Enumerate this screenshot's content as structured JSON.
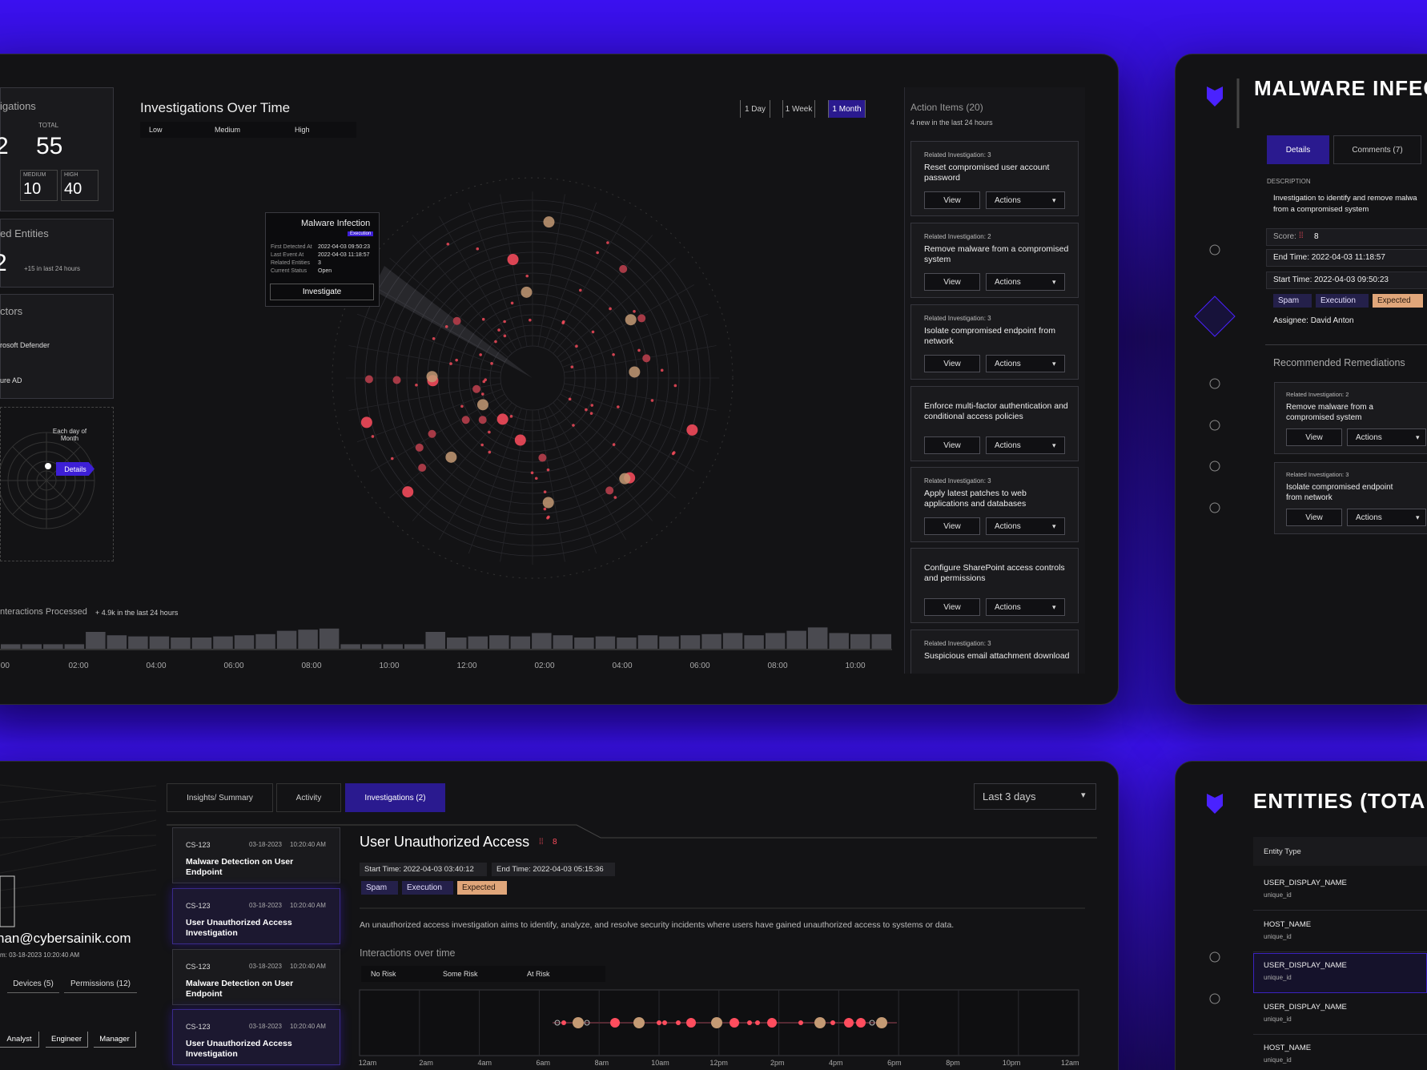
{
  "sidebar": {
    "investigations_title": "igations",
    "total_label": "TOTAL",
    "total": 55,
    "partial_count": 2,
    "medium_label": "MEDIUM",
    "medium": 10,
    "high_label": "HIGH",
    "high": 40,
    "entities_title": "ed Entities",
    "entities_count": 2,
    "entities_note": "+15 in last 24 hours",
    "connectors_title": "ctors",
    "connectors": [
      "rosoft Defender",
      "ure AD"
    ],
    "calendar_label": "Each day of Month",
    "details_button": "Details"
  },
  "investigations_chart": {
    "title": "Investigations Over Time",
    "legend": [
      "Low",
      "Medium",
      "High"
    ],
    "ranges": [
      "1 Day",
      "1 Week",
      "1 Month"
    ],
    "selected_range": 2,
    "tooltip": {
      "title": "Malware Infection",
      "tag": "Execution",
      "fields": [
        {
          "label": "First Detected At",
          "value": "2022-04-03 09:50:23"
        },
        {
          "label": "Last Event At",
          "value": "2022-04-03 11:18:57"
        },
        {
          "label": "Related Entities",
          "value": 3
        },
        {
          "label": "Current Status",
          "value": "Open"
        }
      ],
      "button": "Investigate"
    }
  },
  "interactions": {
    "title": "nteractions Processed",
    "note": "+ 4.9k in the last 24 hours",
    "time_labels": [
      ":00",
      "02:00",
      "04:00",
      "06:00",
      "08:00",
      "10:00",
      "12:00",
      "02:00",
      "04:00",
      "06:00",
      "08:00",
      "10:00"
    ],
    "bars": [
      4,
      4,
      4,
      4,
      15,
      12,
      11,
      11,
      10,
      10,
      11,
      12,
      13,
      16,
      17,
      18,
      4,
      4,
      4,
      4,
      15,
      10,
      11,
      12,
      11,
      14,
      12,
      10,
      11,
      10,
      12,
      11,
      12,
      13,
      14,
      12,
      14,
      16,
      19,
      14,
      13,
      13
    ]
  },
  "action_items": {
    "title": "Action Items (20)",
    "subtitle": "4 new in the last 24 hours",
    "items": [
      {
        "related": "Related Investigation: 3",
        "text": "Reset compromised user account password",
        "view": "View",
        "actions": "Actions"
      },
      {
        "related": "Related Investigation: 2",
        "text": "Remove malware from a compromised system",
        "view": "View",
        "actions": "Actions"
      },
      {
        "related": "Related Investigation: 3",
        "text": "Isolate compromised endpoint from network",
        "view": "View",
        "actions": "Actions"
      },
      {
        "text": "Enforce multi-factor authentication and conditional access policies",
        "view": "View",
        "actions": "Actions"
      },
      {
        "related": "Related Investigation: 3",
        "text": "Apply latest patches to web applications and databases",
        "view": "View",
        "actions": "Actions"
      },
      {
        "text": "Configure SharePoint access controls and permissions",
        "view": "View",
        "actions": "Actions"
      },
      {
        "related": "Related Investigation: 3",
        "text": "Suspicious email attachment download"
      }
    ]
  },
  "investigation_detail": {
    "title": "MALWARE INFECT",
    "tabs": [
      "Details",
      "Comments (7)"
    ],
    "description_label": "DESCRIPTION",
    "description_lines": [
      "Investigation to identify and remove malwa",
      "from a compromised system"
    ],
    "score_label": "Score:",
    "score": 8,
    "end_time": "End Time: 2022-04-03 11:18:57",
    "start_time": "Start Time: 2022-04-03 09:50:23",
    "tags": [
      "Spam",
      "Execution",
      "Expected"
    ],
    "assignee": "Assignee: David Anton",
    "remediations_title": "Recommended Remediations",
    "remediations": [
      {
        "related": "Related Investigation: 2",
        "text": "Remove malware from a compromised system",
        "view": "View",
        "actions": "Actions"
      },
      {
        "related": "Related Investigation: 3",
        "text": "Isolate compromised endpoint from network",
        "view": "View",
        "actions": "Actions"
      }
    ]
  },
  "user_panel": {
    "email": "han@cybersainik.com",
    "since": "m: 03-18-2023 10:20:40 AM",
    "tabs": [
      "Devices (5)",
      "Permissions (12)"
    ],
    "roles": [
      "Analyst",
      "Engineer",
      "Manager"
    ]
  },
  "case_view": {
    "tabs": [
      "Insights/ Summary",
      "Activity",
      "Investigations (2)"
    ],
    "active_tab": 2,
    "period": "Last 3 days",
    "cases": [
      {
        "id": "CS-123",
        "date": "03-18-2023",
        "time": "10:20:40 AM",
        "title": "Malware Detection on User Endpoint",
        "selected": false
      },
      {
        "id": "CS-123",
        "date": "03-18-2023",
        "time": "10:20:40 AM",
        "title": "User Unauthorized Access Investigation",
        "selected": true
      },
      {
        "id": "CS-123",
        "date": "03-18-2023",
        "time": "10:20:40 AM",
        "title": "Malware Detection on User Endpoint",
        "selected": false
      },
      {
        "id": "CS-123",
        "date": "03-18-2023",
        "time": "10:20:40 AM",
        "title": "User Unauthorized Access Investigation",
        "selected": true
      }
    ],
    "title": "User Unauthorized Access",
    "score": 8,
    "start_time": "Start Time: 2022-04-03 03:40:12",
    "end_time": "End Time: 2022-04-03 05:15:36",
    "tags": [
      "Spam",
      "Execution",
      "Expected"
    ],
    "description": "An unauthorized access investigation aims to identify, analyze, and resolve security incidents where users have gained unauthorized access to systems or data.",
    "chart_title": "Interactions over time",
    "legend": [
      "No Risk",
      "Some Risk",
      "At Risk"
    ],
    "time_labels": [
      "12am",
      "2am",
      "4am",
      "6am",
      "8am",
      "10am",
      "12pm",
      "2pm",
      "4pm",
      "6pm",
      "8pm",
      "10pm",
      "12am"
    ]
  },
  "entities": {
    "title": "ENTITIES (TOTAL",
    "column": "Entity Type",
    "selected_row": 2,
    "rows": [
      {
        "type": "USER_DISPLAY_NAME",
        "id": "unique_id"
      },
      {
        "type": "HOST_NAME",
        "id": "unique_id"
      },
      {
        "type": "USER_DISPLAY_NAME",
        "id": "unique_id"
      },
      {
        "type": "USER_DISPLAY_NAME",
        "id": "unique_id"
      },
      {
        "type": "HOST_NAME",
        "id": "unique_id"
      }
    ]
  }
}
